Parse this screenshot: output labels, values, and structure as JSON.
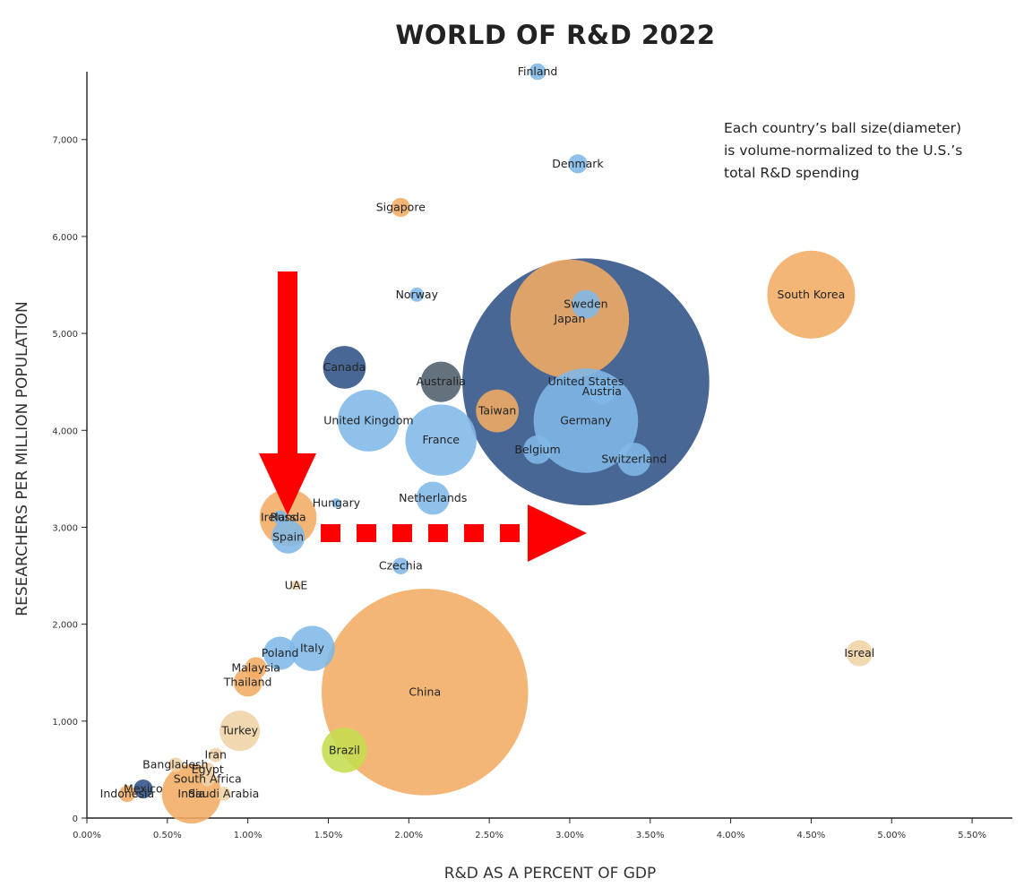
{
  "colors": {
    "light_blue": "#7fb8e8",
    "dark_blue": "#3a5a8c",
    "orange": "#f3ac63",
    "light_orange": "#efd3a6",
    "green": "#c4dd4f",
    "gray": "#4f5f6c",
    "arrow_red": "#ff0000"
  },
  "chart_data": {
    "type": "scatter",
    "title": "WORLD OF R&D 2022",
    "xlabel": "R&D AS A PERCENT OF GDP",
    "ylabel": "RESEARCHERS PER MILLION POPULATION",
    "xlim": [
      0,
      5.75
    ],
    "ylim": [
      0,
      7700
    ],
    "x_ticks": [
      "0.00%",
      "0.50%",
      "1.00%",
      "1.50%",
      "2.00%",
      "2.50%",
      "3.00%",
      "3.50%",
      "4.00%",
      "4.50%",
      "5.00%",
      "5.50%"
    ],
    "y_ticks": [
      "0",
      "1,000",
      "2,000",
      "3,000",
      "4,000",
      "5,000",
      "6,000",
      "7,000"
    ],
    "annotation": [
      "Each country’s ball size(diameter)",
      "is volume-normalized to the U.S.’s",
      "total R&D spending"
    ],
    "points": [
      {
        "label": "United States",
        "x": 3.1,
        "y": 4500,
        "size": 5.2,
        "color": "dark_blue"
      },
      {
        "label": "China",
        "x": 2.1,
        "y": 1300,
        "size": 4.35,
        "color": "orange"
      },
      {
        "label": "Japan",
        "x": 3.0,
        "y": 5150,
        "size": 2.5,
        "color": "orange"
      },
      {
        "label": "Germany",
        "x": 3.1,
        "y": 4100,
        "size": 2.2,
        "color": "light_blue"
      },
      {
        "label": "South Korea",
        "x": 4.5,
        "y": 5400,
        "size": 1.85,
        "color": "orange"
      },
      {
        "label": "France",
        "x": 2.2,
        "y": 3900,
        "size": 1.5,
        "color": "light_blue"
      },
      {
        "label": "United Kingdom",
        "x": 1.75,
        "y": 4100,
        "size": 1.3,
        "color": "light_blue"
      },
      {
        "label": "Russia",
        "x": 1.25,
        "y": 3100,
        "size": 1.2,
        "color": "orange"
      },
      {
        "label": "India",
        "x": 0.65,
        "y": 250,
        "size": 1.25,
        "color": "orange"
      },
      {
        "label": "Italy",
        "x": 1.4,
        "y": 1750,
        "size": 0.95,
        "color": "light_blue"
      },
      {
        "label": "Brazil",
        "x": 1.6,
        "y": 700,
        "size": 0.95,
        "color": "green"
      },
      {
        "label": "Canada",
        "x": 1.6,
        "y": 4650,
        "size": 0.9,
        "color": "dark_blue"
      },
      {
        "label": "Australia",
        "x": 2.2,
        "y": 4500,
        "size": 0.85,
        "color": "gray"
      },
      {
        "label": "Taiwan",
        "x": 2.55,
        "y": 4200,
        "size": 0.9,
        "color": "orange"
      },
      {
        "label": "Turkey",
        "x": 0.95,
        "y": 900,
        "size": 0.85,
        "color": "light_orange"
      },
      {
        "label": "Switzerland",
        "x": 3.4,
        "y": 3700,
        "size": 0.7,
        "color": "light_blue"
      },
      {
        "label": "Spain",
        "x": 1.25,
        "y": 2900,
        "size": 0.7,
        "color": "light_blue"
      },
      {
        "label": "Belgium",
        "x": 2.8,
        "y": 3800,
        "size": 0.6,
        "color": "light_blue"
      },
      {
        "label": "Netherlands",
        "x": 2.15,
        "y": 3300,
        "size": 0.7,
        "color": "light_blue"
      },
      {
        "label": "Austria",
        "x": 3.2,
        "y": 4400,
        "size": 0.55,
        "color": "light_blue"
      },
      {
        "label": "Sweden",
        "x": 3.1,
        "y": 5300,
        "size": 0.6,
        "color": "light_blue"
      },
      {
        "label": "Poland",
        "x": 1.2,
        "y": 1700,
        "size": 0.7,
        "color": "light_blue"
      },
      {
        "label": "Thailand",
        "x": 1.0,
        "y": 1400,
        "size": 0.6,
        "color": "orange"
      },
      {
        "label": "Malaysia",
        "x": 1.05,
        "y": 1550,
        "size": 0.45,
        "color": "orange"
      },
      {
        "label": "Isreal",
        "x": 4.8,
        "y": 1700,
        "size": 0.55,
        "color": "light_orange"
      },
      {
        "label": "Mexico",
        "x": 0.35,
        "y": 300,
        "size": 0.4,
        "color": "dark_blue"
      },
      {
        "label": "Indonesia",
        "x": 0.25,
        "y": 250,
        "size": 0.35,
        "color": "orange"
      },
      {
        "label": "Sigapore",
        "x": 1.95,
        "y": 6300,
        "size": 0.4,
        "color": "orange"
      },
      {
        "label": "Denmark",
        "x": 3.05,
        "y": 6750,
        "size": 0.4,
        "color": "light_blue"
      },
      {
        "label": "Finland",
        "x": 2.8,
        "y": 7700,
        "size": 0.35,
        "color": "light_blue"
      },
      {
        "label": "Norway",
        "x": 2.05,
        "y": 5400,
        "size": 0.3,
        "color": "light_blue"
      },
      {
        "label": "Czechia",
        "x": 1.95,
        "y": 2600,
        "size": 0.35,
        "color": "light_blue"
      },
      {
        "label": "UAE",
        "x": 1.3,
        "y": 2400,
        "size": 0.2,
        "color": "light_orange"
      },
      {
        "label": "Hungary",
        "x": 1.55,
        "y": 3250,
        "size": 0.2,
        "color": "light_blue"
      },
      {
        "label": "Ireland",
        "x": 1.2,
        "y": 3100,
        "size": 0.3,
        "color": "light_blue"
      },
      {
        "label": "Egypt",
        "x": 0.75,
        "y": 500,
        "size": 0.3,
        "color": "light_orange"
      },
      {
        "label": "Iran",
        "x": 0.8,
        "y": 650,
        "size": 0.3,
        "color": "light_orange"
      },
      {
        "label": "Bangladesh",
        "x": 0.55,
        "y": 550,
        "size": 0.3,
        "color": "light_orange"
      },
      {
        "label": "South Africa",
        "x": 0.75,
        "y": 400,
        "size": 0.3,
        "color": "light_orange"
      },
      {
        "label": "Saudi Arabia",
        "x": 0.85,
        "y": 250,
        "size": 0.3,
        "color": "light_orange"
      }
    ]
  }
}
